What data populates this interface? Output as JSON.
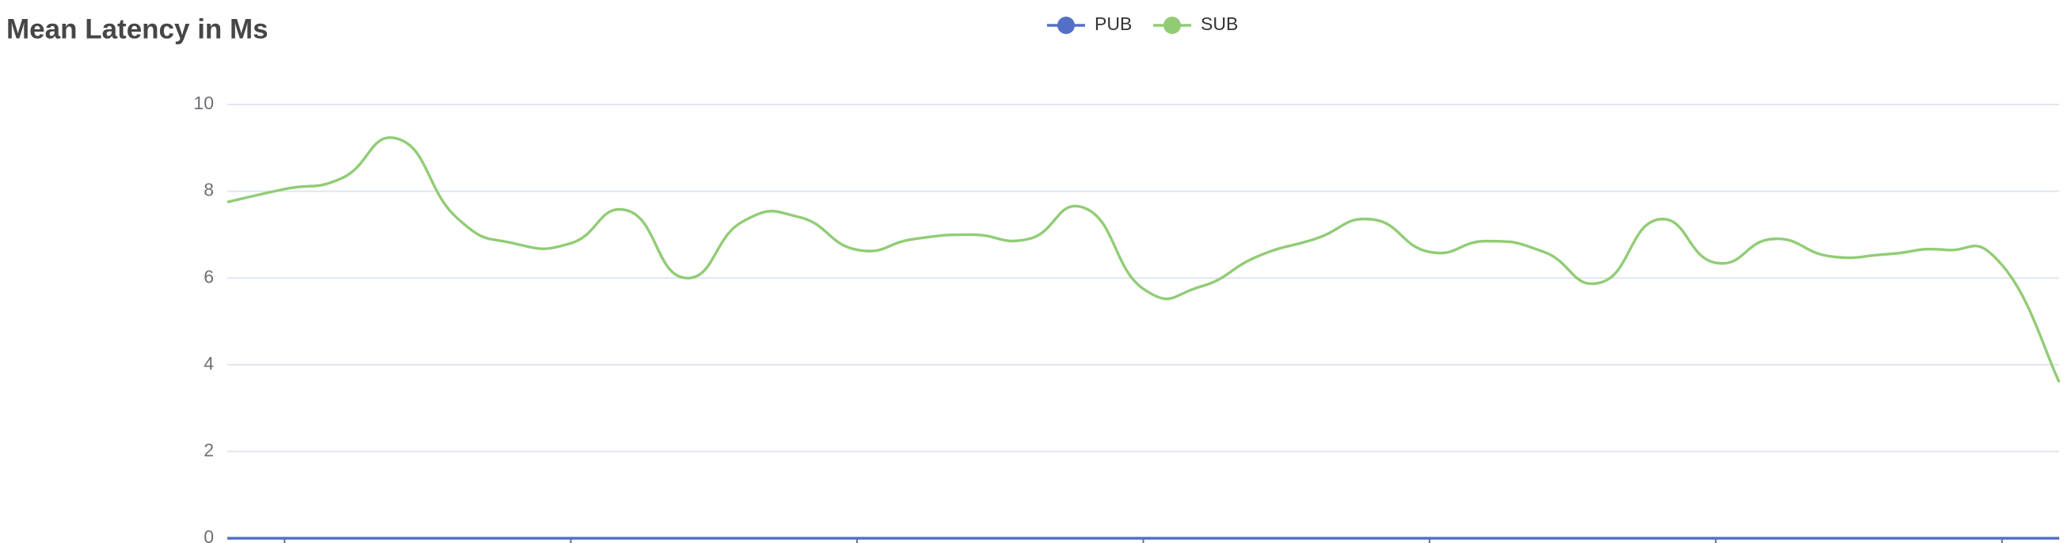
{
  "chart_data": {
    "type": "line",
    "title": "Mean Latency in Ms",
    "x": [
      0,
      1,
      2,
      3,
      4,
      5,
      6,
      7,
      8,
      9,
      10,
      11,
      12,
      13,
      14,
      15,
      16,
      17,
      18,
      19,
      20,
      21,
      22,
      23,
      24,
      25,
      26,
      27,
      28,
      29,
      30,
      31,
      32
    ],
    "xlim": [
      0,
      32
    ],
    "xticks": [
      1,
      6,
      11,
      16,
      21,
      26,
      31
    ],
    "ylim": [
      0,
      10
    ],
    "yticks": [
      0,
      2,
      4,
      6,
      8,
      10
    ],
    "grid": true,
    "legend": "top",
    "series": [
      {
        "name": "PUB",
        "color": "#5470c6",
        "values": [
          0,
          0,
          0,
          0,
          0,
          0,
          0,
          0,
          0,
          0,
          0,
          0,
          0,
          0,
          0,
          0,
          0,
          0,
          0,
          0,
          0,
          0,
          0,
          0,
          0,
          0,
          0,
          0,
          0,
          0,
          0,
          0,
          0
        ]
      },
      {
        "name": "SUB",
        "color": "#91cc75",
        "values": [
          7.75,
          8.05,
          8.3,
          9.2,
          7.4,
          6.8,
          6.8,
          7.55,
          6.0,
          7.3,
          7.4,
          6.65,
          6.9,
          7.0,
          6.9,
          7.6,
          5.75,
          5.8,
          6.5,
          6.9,
          7.35,
          6.6,
          6.85,
          6.6,
          5.9,
          7.35,
          6.35,
          6.9,
          6.5,
          6.55,
          6.65,
          6.3,
          3.6
        ]
      }
    ]
  }
}
